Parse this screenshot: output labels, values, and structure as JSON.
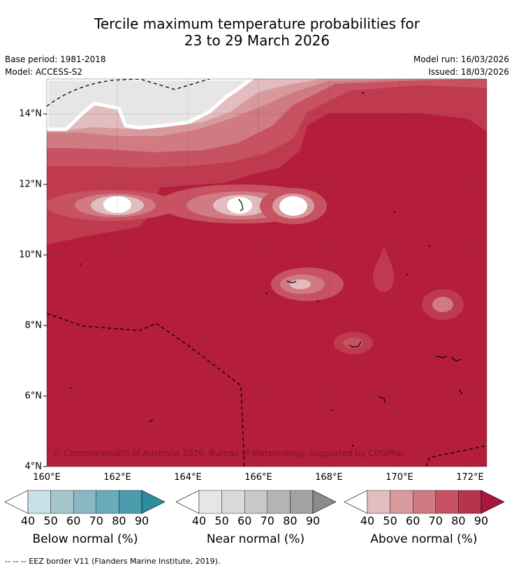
{
  "title": {
    "line1": "Tercile maximum temperature probabilities for",
    "line2": "23 to 29 March 2026"
  },
  "meta": {
    "base_period": "Base period: 1981-2018",
    "model": "Model: ACCESS-S2",
    "model_run": "Model run: 16/03/2026",
    "issued": "Issued: 18/03/2026"
  },
  "map": {
    "latitude_labels": [
      "14°N",
      "12°N",
      "10°N",
      "8°N",
      "6°N",
      "4°N"
    ],
    "longitude_labels": [
      "160°E",
      "162°E",
      "164°E",
      "166°E",
      "168°E",
      "170°E",
      "172°E"
    ],
    "copyright": "© Commonwealth of Australia 2026, Bureau of Meteorology, supported by COSPPac",
    "colors": {
      "level90": "#b41e3a",
      "level80": "#c03a4f",
      "level70": "#c75262",
      "level60": "#d07a81",
      "level50": "#d8999d",
      "level40": "#e2bcbe",
      "near": "#e6e6e6"
    }
  },
  "colorbars": [
    {
      "title": "Below normal (%)",
      "ticks": [
        "40",
        "50",
        "60",
        "70",
        "80",
        "90"
      ],
      "colors": [
        "#c8e0e6",
        "#a6c6cc",
        "#89b8c3",
        "#6aabba",
        "#4b9dae",
        "#2f8c9e"
      ]
    },
    {
      "title": "Near normal (%)",
      "ticks": [
        "40",
        "50",
        "60",
        "70",
        "80",
        "90"
      ],
      "colors": [
        "#e6e6e6",
        "#d9d9d9",
        "#c8c8c8",
        "#b5b5b5",
        "#a2a2a2",
        "#8a8a8a"
      ]
    },
    {
      "title": "Above normal (%)",
      "ticks": [
        "40",
        "50",
        "60",
        "70",
        "80",
        "90"
      ],
      "colors": [
        "#e2bcbe",
        "#d8999d",
        "#d07a81",
        "#c75262",
        "#b8334c",
        "#a6193a"
      ]
    }
  ],
  "footer": "--  --  -- EEZ border V11 (Flanders Marine Institute, 2019)."
}
